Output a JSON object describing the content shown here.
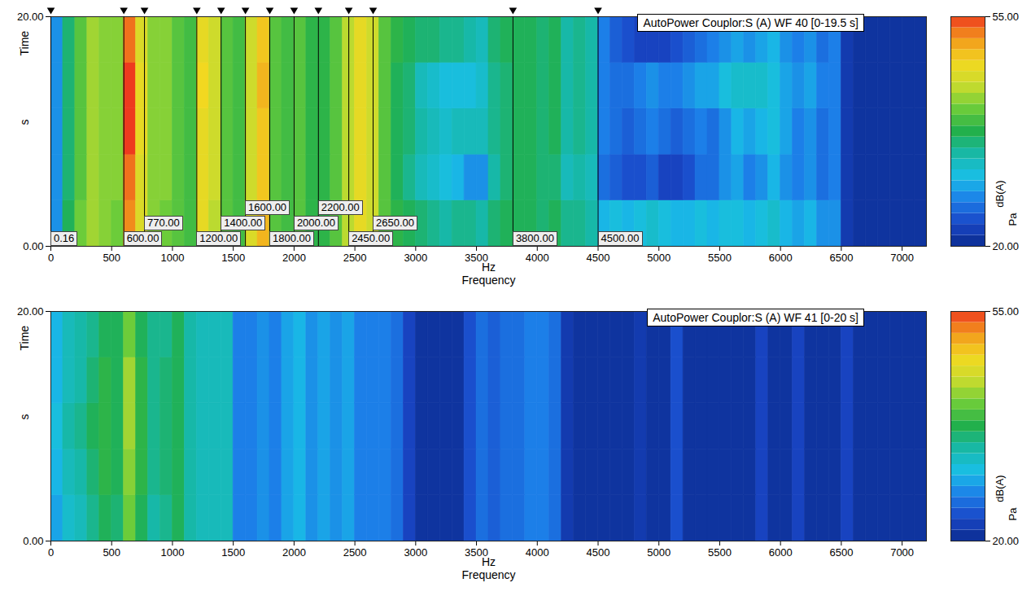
{
  "chart_data": [
    {
      "type": "heatmap",
      "title": "AutoPower Couplor:S (A) WF 40 [0-19.5 s]",
      "x_label": "Frequency",
      "x_unit": "Hz",
      "y_label": "Time",
      "y_unit": "s",
      "xlim": [
        0,
        7200
      ],
      "xticks": [
        0,
        500,
        1000,
        1500,
        2000,
        2500,
        3000,
        3500,
        4000,
        4500,
        5000,
        5500,
        6000,
        6500,
        7000
      ],
      "ylim": [
        0,
        20
      ],
      "yticks": [
        {
          "value": 0,
          "label": "0.00"
        },
        {
          "value": 20,
          "label": "20.00"
        }
      ],
      "x_edges": [
        0,
        100,
        200,
        300,
        400,
        500,
        600,
        700,
        800,
        900,
        1000,
        1100,
        1200,
        1300,
        1400,
        1500,
        1600,
        1700,
        1800,
        1900,
        2000,
        2100,
        2200,
        2300,
        2400,
        2500,
        2600,
        2700,
        2800,
        2900,
        3000,
        3100,
        3200,
        3300,
        3400,
        3500,
        3600,
        3700,
        3800,
        3900,
        4000,
        4100,
        4200,
        4300,
        4400,
        4500,
        4600,
        4700,
        4800,
        4900,
        5000,
        5100,
        5200,
        5300,
        5400,
        5500,
        5600,
        5700,
        5800,
        5900,
        6000,
        6100,
        6200,
        6300,
        6400,
        6500,
        6600,
        6700,
        6800,
        6900,
        7000,
        7100,
        7200
      ],
      "y_edges": [
        0,
        4,
        8,
        12,
        16,
        20
      ],
      "values": [
        [
          28,
          37,
          41,
          43,
          42,
          41,
          52,
          46,
          42,
          41,
          40,
          39,
          47,
          44,
          40,
          39,
          46,
          50,
          40,
          39,
          40,
          38,
          38,
          40,
          44,
          47,
          45,
          40,
          38,
          37,
          36,
          35,
          34,
          35,
          35,
          34,
          36,
          37,
          37,
          37,
          36,
          37,
          35,
          35,
          34,
          30,
          31,
          30,
          31,
          32,
          31,
          30,
          30,
          31,
          30,
          31,
          31,
          30,
          31,
          32,
          30,
          29,
          30,
          28,
          28,
          22,
          21,
          21,
          21,
          21,
          21,
          21
        ],
        [
          28,
          36,
          40,
          43,
          42,
          42,
          53,
          46,
          42,
          42,
          40,
          39,
          47,
          45,
          40,
          39,
          45,
          49,
          40,
          39,
          40,
          38,
          38,
          40,
          44,
          47,
          45,
          40,
          37,
          35,
          33,
          32,
          31,
          30,
          28,
          28,
          34,
          36,
          37,
          37,
          36,
          36,
          33,
          34,
          33,
          26,
          25,
          24,
          24,
          25,
          23,
          23,
          24,
          26,
          26,
          28,
          29,
          27,
          28,
          30,
          28,
          27,
          28,
          26,
          27,
          22,
          21,
          21,
          21,
          21,
          21,
          21
        ],
        [
          28,
          36,
          40,
          43,
          42,
          42,
          55,
          47,
          42,
          42,
          40,
          39,
          47,
          45,
          40,
          39,
          45,
          49,
          40,
          39,
          40,
          38,
          38,
          40,
          44,
          47,
          45,
          40,
          37,
          36,
          34,
          33,
          32,
          33,
          33,
          33,
          35,
          36,
          37,
          37,
          36,
          37,
          34,
          35,
          34,
          27,
          26,
          25,
          26,
          27,
          26,
          25,
          26,
          27,
          26,
          28,
          30,
          29,
          30,
          31,
          29,
          27,
          28,
          26,
          27,
          22,
          21,
          21,
          21,
          21,
          21,
          21
        ],
        [
          28,
          36,
          40,
          43,
          42,
          42,
          55,
          47,
          42,
          42,
          40,
          39,
          48,
          45,
          40,
          39,
          45,
          50,
          40,
          39,
          40,
          38,
          38,
          40,
          44,
          47,
          45,
          40,
          37,
          36,
          33,
          32,
          31,
          31,
          31,
          32,
          35,
          36,
          37,
          37,
          36,
          37,
          34,
          35,
          34,
          27,
          26,
          26,
          27,
          28,
          27,
          27,
          28,
          29,
          29,
          31,
          32,
          32,
          32,
          31,
          29,
          28,
          29,
          27,
          27,
          22,
          21,
          21,
          21,
          21,
          21,
          21
        ],
        [
          28,
          36,
          40,
          43,
          42,
          42,
          53,
          46,
          42,
          42,
          40,
          39,
          47,
          45,
          40,
          39,
          45,
          49,
          40,
          39,
          40,
          38,
          38,
          40,
          44,
          47,
          45,
          40,
          38,
          37,
          36,
          36,
          35,
          35,
          34,
          33,
          36,
          37,
          37,
          37,
          36,
          37,
          34,
          35,
          34,
          27,
          25,
          24,
          23,
          23,
          23,
          24,
          25,
          26,
          27,
          28,
          29,
          28,
          29,
          30,
          28,
          27,
          28,
          26,
          27,
          22,
          21,
          21,
          21,
          21,
          21,
          21
        ]
      ],
      "colorbar": {
        "range": [
          20,
          55
        ],
        "ticks": [
          {
            "value": 20,
            "label": "20.00"
          },
          {
            "value": 55,
            "label": "55.00"
          }
        ],
        "labels": [
          "dB(A)",
          "Pa"
        ]
      },
      "cursors": [
        {
          "value": 0.16,
          "label": "0.16"
        },
        {
          "value": 600,
          "label": "600.00"
        },
        {
          "value": 770,
          "label": "770.00"
        },
        {
          "value": 1200,
          "label": "1200.00"
        },
        {
          "value": 1400,
          "label": "1400.00"
        },
        {
          "value": 1600,
          "label": "1600.00"
        },
        {
          "value": 1800,
          "label": "1800.00"
        },
        {
          "value": 2000,
          "label": "2000.00"
        },
        {
          "value": 2200,
          "label": "2200.00"
        },
        {
          "value": 2450,
          "label": "2450.00"
        },
        {
          "value": 2650,
          "label": "2650.00"
        },
        {
          "value": 3800,
          "label": "3800.00"
        },
        {
          "value": 4500,
          "label": "4500.00"
        }
      ]
    },
    {
      "type": "heatmap",
      "title": "AutoPower Couplor:S (A) WF 41 [0-20 s]",
      "x_label": "Frequency",
      "x_unit": "Hz",
      "y_label": "Time",
      "y_unit": "s",
      "xlim": [
        0,
        7200
      ],
      "xticks": [
        0,
        500,
        1000,
        1500,
        2000,
        2500,
        3000,
        3500,
        4000,
        4500,
        5000,
        5500,
        6000,
        6500,
        7000
      ],
      "ylim": [
        0,
        20
      ],
      "yticks": [
        {
          "value": 0,
          "label": "0.00"
        },
        {
          "value": 20,
          "label": "20.00"
        }
      ],
      "x_edges": [
        0,
        100,
        200,
        300,
        400,
        500,
        600,
        700,
        800,
        900,
        1000,
        1100,
        1200,
        1300,
        1400,
        1500,
        1600,
        1700,
        1800,
        1900,
        2000,
        2100,
        2200,
        2300,
        2400,
        2500,
        2600,
        2700,
        2800,
        2900,
        3000,
        3100,
        3200,
        3300,
        3400,
        3500,
        3600,
        3700,
        3800,
        3900,
        4000,
        4100,
        4200,
        4300,
        4400,
        4500,
        4600,
        4700,
        4800,
        4900,
        5000,
        5100,
        5200,
        5300,
        5400,
        5500,
        5600,
        5700,
        5800,
        5900,
        6000,
        6100,
        6200,
        6300,
        6400,
        6500,
        6600,
        6700,
        6800,
        6900,
        7000,
        7100,
        7200
      ],
      "y_edges": [
        0,
        4,
        8,
        12,
        16,
        20
      ],
      "values": [
        [
          29,
          32,
          33,
          35,
          37,
          36,
          41,
          37,
          34,
          35,
          37,
          34,
          33,
          33,
          33,
          27,
          27,
          28,
          27,
          29,
          30,
          28,
          29,
          28,
          29,
          27,
          27,
          27,
          26,
          23,
          21,
          21,
          21,
          21,
          24,
          26,
          25,
          26,
          26,
          27,
          27,
          26,
          22,
          21,
          21,
          21,
          21,
          21,
          22,
          21,
          21,
          24,
          21,
          21,
          21,
          21,
          21,
          21,
          23,
          21,
          21,
          23,
          21,
          21,
          21,
          23,
          21,
          21,
          21,
          21,
          21,
          21
        ],
        [
          30,
          33,
          34,
          36,
          38,
          37,
          42,
          38,
          35,
          36,
          37,
          34,
          33,
          33,
          33,
          27,
          27,
          28,
          27,
          29,
          30,
          28,
          29,
          28,
          29,
          27,
          27,
          27,
          26,
          23,
          21,
          21,
          21,
          21,
          24,
          26,
          25,
          26,
          26,
          27,
          27,
          26,
          22,
          21,
          21,
          21,
          21,
          21,
          22,
          21,
          21,
          24,
          21,
          21,
          21,
          21,
          21,
          21,
          23,
          21,
          21,
          23,
          21,
          21,
          21,
          23,
          21,
          21,
          21,
          21,
          21,
          21
        ],
        [
          31,
          34,
          35,
          37,
          38,
          37,
          43,
          38,
          35,
          36,
          37,
          34,
          33,
          33,
          33,
          27,
          27,
          28,
          27,
          29,
          30,
          28,
          29,
          28,
          29,
          27,
          27,
          27,
          26,
          23,
          21,
          21,
          21,
          21,
          24,
          26,
          25,
          26,
          26,
          27,
          27,
          26,
          22,
          21,
          21,
          21,
          21,
          21,
          22,
          21,
          21,
          24,
          21,
          21,
          21,
          21,
          21,
          21,
          23,
          21,
          21,
          23,
          21,
          21,
          21,
          23,
          21,
          21,
          21,
          21,
          21,
          21
        ],
        [
          30,
          33,
          34,
          36,
          38,
          37,
          43,
          38,
          35,
          36,
          37,
          34,
          33,
          33,
          33,
          27,
          27,
          28,
          27,
          29,
          30,
          28,
          29,
          28,
          29,
          27,
          27,
          27,
          26,
          23,
          21,
          21,
          21,
          21,
          24,
          26,
          25,
          26,
          26,
          27,
          27,
          26,
          22,
          21,
          21,
          21,
          21,
          21,
          22,
          21,
          21,
          24,
          21,
          21,
          21,
          21,
          21,
          21,
          23,
          21,
          21,
          23,
          21,
          21,
          21,
          23,
          21,
          21,
          21,
          21,
          21,
          21
        ],
        [
          30,
          33,
          34,
          35,
          37,
          37,
          41,
          37,
          35,
          35,
          37,
          34,
          33,
          33,
          33,
          27,
          27,
          28,
          27,
          29,
          30,
          28,
          29,
          28,
          29,
          27,
          27,
          27,
          26,
          23,
          21,
          21,
          21,
          21,
          24,
          26,
          25,
          26,
          26,
          27,
          27,
          26,
          22,
          21,
          21,
          21,
          21,
          21,
          22,
          21,
          21,
          24,
          21,
          21,
          21,
          21,
          21,
          21,
          23,
          21,
          21,
          23,
          21,
          21,
          21,
          23,
          21,
          21,
          21,
          21,
          21,
          21
        ]
      ],
      "colorbar": {
        "range": [
          20,
          55
        ],
        "ticks": [
          {
            "value": 20,
            "label": "20.00"
          },
          {
            "value": 55,
            "label": "55.00"
          }
        ],
        "labels": [
          "dB(A)",
          "Pa"
        ]
      }
    }
  ]
}
